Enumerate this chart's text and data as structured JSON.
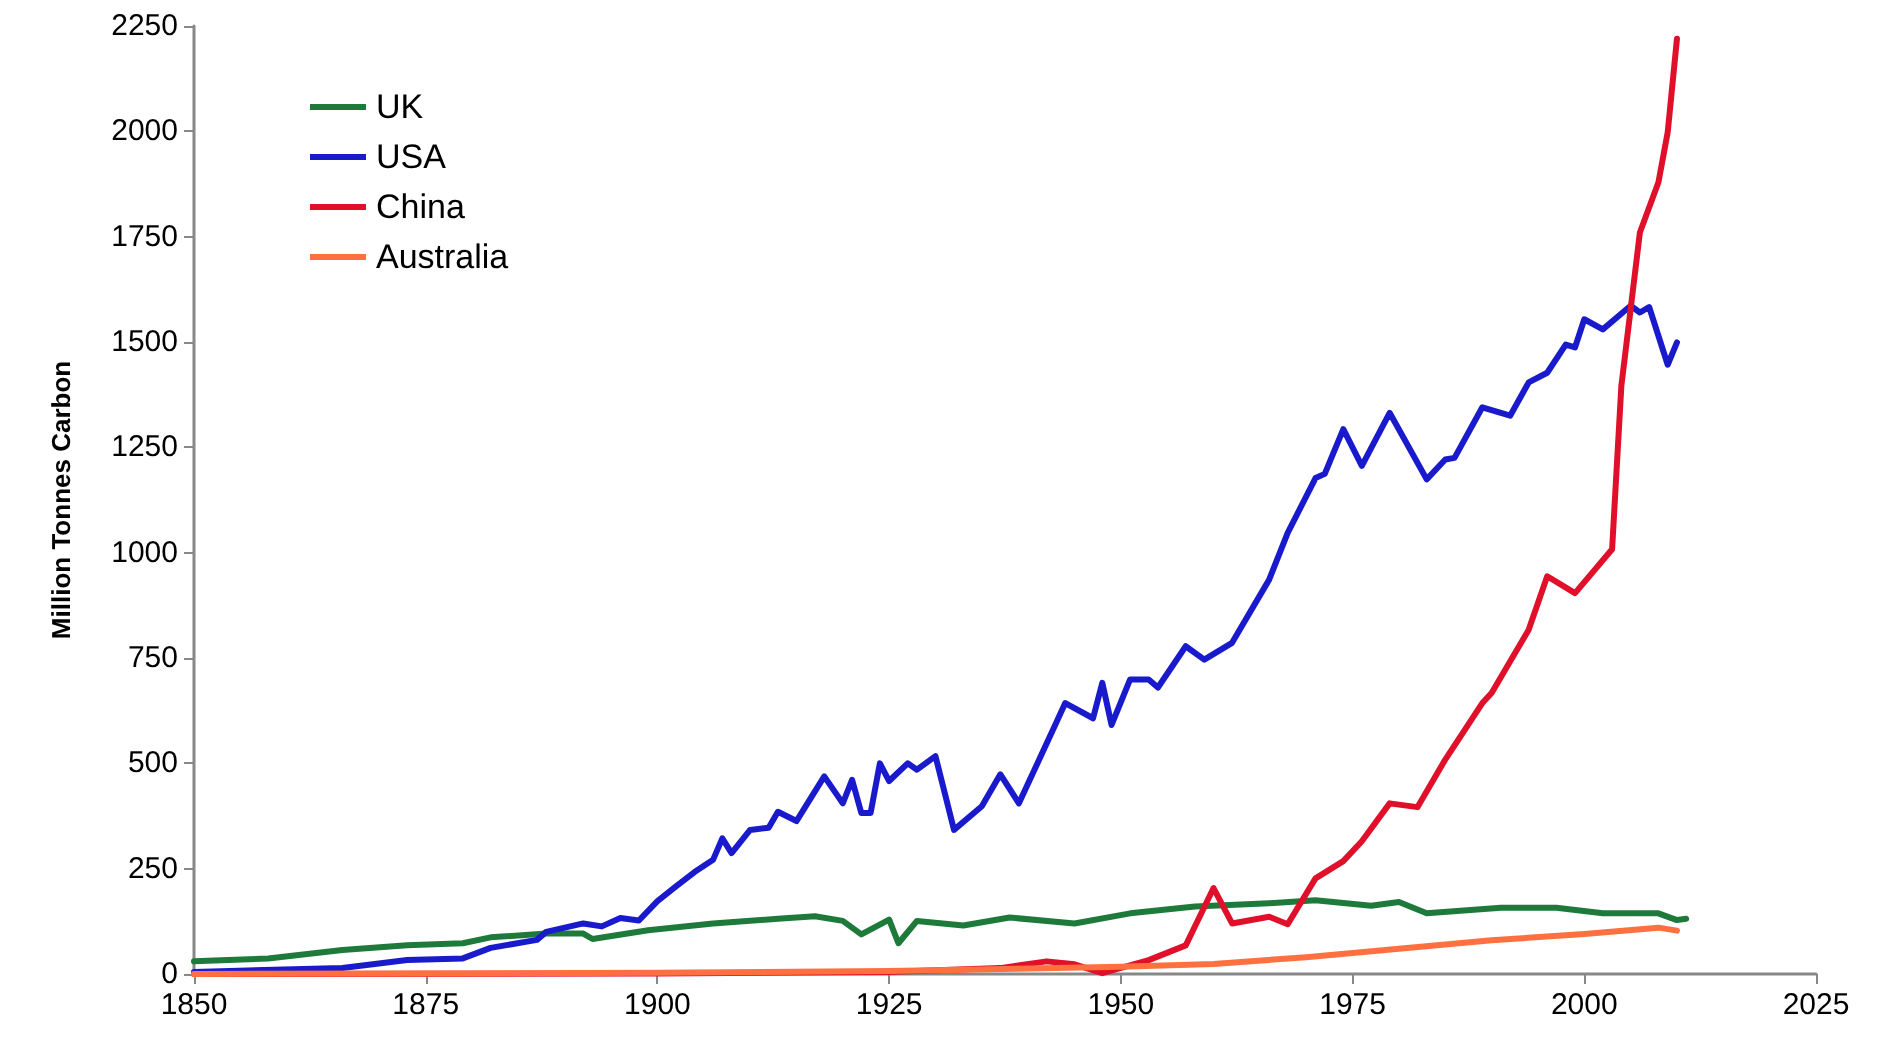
{
  "chart_data": {
    "type": "line",
    "ylabel": "Million Tonnes Carbon",
    "xlim": [
      1850,
      2025
    ],
    "xticks": [
      1850,
      1875,
      1900,
      1925,
      1950,
      1975,
      2000,
      2025
    ],
    "ylim": [
      0,
      2250
    ],
    "yticks": [
      0,
      250,
      500,
      750,
      1000,
      1250,
      1500,
      1750,
      2000,
      2250
    ],
    "grid": false,
    "legend": "top left",
    "marker": "none",
    "line_style": "solid",
    "series": [
      {
        "name": "UK",
        "color": "#1e7a3a",
        "x": [
          1850,
          1858,
          1866,
          1873,
          1879,
          1882,
          1888,
          1892,
          1893,
          1899,
          1906,
          1913,
          1917,
          1920,
          1922,
          1925,
          1926,
          1928,
          1933,
          1938,
          1945,
          1951,
          1958,
          1966,
          1971,
          1977,
          1980,
          1983,
          1991,
          1997,
          2002,
          2008,
          2010,
          2011
        ],
        "values": [
          30,
          37,
          57,
          68,
          73,
          87,
          96,
          96,
          83,
          104,
          120,
          131,
          137,
          126,
          94,
          129,
          73,
          126,
          115,
          134,
          120,
          144,
          160,
          168,
          175,
          162,
          171,
          144,
          157,
          157,
          144,
          144,
          128,
          131
        ]
      },
      {
        "name": "USA",
        "color": "#1a1acd",
        "x": [
          1850,
          1866,
          1873,
          1879,
          1882,
          1887,
          1888,
          1892,
          1894,
          1896,
          1898,
          1900,
          1902,
          1904,
          1906,
          1907,
          1908,
          1910,
          1912,
          1913,
          1915,
          1918,
          1920,
          1921,
          1922,
          1923,
          1924,
          1925,
          1927,
          1928,
          1930,
          1932,
          1935,
          1937,
          1939,
          1943,
          1944,
          1947,
          1948,
          1949,
          1951,
          1953,
          1954,
          1957,
          1959,
          1962,
          1966,
          1968,
          1971,
          1972,
          1974,
          1976,
          1979,
          1983,
          1985,
          1986,
          1989,
          1992,
          1994,
          1996,
          1998,
          1999,
          2000,
          2002,
          2005,
          2006,
          2007,
          2009,
          2010
        ],
        "values": [
          5,
          14,
          33,
          37,
          62,
          81,
          100,
          120,
          113,
          133,
          127,
          173,
          208,
          242,
          271,
          322,
          287,
          342,
          347,
          385,
          363,
          469,
          405,
          461,
          382,
          382,
          500,
          458,
          500,
          485,
          517,
          342,
          398,
          474,
          405,
          595,
          643,
          607,
          691,
          591,
          699,
          699,
          680,
          778,
          746,
          786,
          936,
          1047,
          1177,
          1187,
          1293,
          1206,
          1332,
          1174,
          1221,
          1225,
          1345,
          1325,
          1404,
          1427,
          1494,
          1487,
          1554,
          1530,
          1586,
          1570,
          1583,
          1446,
          1499
        ]
      },
      {
        "name": "China",
        "color": "#e0102a",
        "x": [
          1850,
          1900,
          1925,
          1937,
          1942,
          1945,
          1948,
          1953,
          1957,
          1960,
          1962,
          1966,
          1968,
          1971,
          1974,
          1976,
          1979,
          1982,
          1985,
          1989,
          1990,
          1994,
          1996,
          1999,
          2003,
          2004,
          2006,
          2008,
          2009,
          2010
        ],
        "values": [
          0,
          1,
          5,
          14,
          30,
          23,
          2,
          33,
          68,
          204,
          120,
          136,
          118,
          227,
          268,
          315,
          405,
          396,
          509,
          643,
          667,
          817,
          944,
          904,
          1008,
          1396,
          1760,
          1879,
          1998,
          2220
        ]
      },
      {
        "name": "Australia",
        "color": "#ff7040",
        "x": [
          1850,
          1900,
          1925,
          1950,
          1960,
          1970,
          1980,
          1990,
          2000,
          2008,
          2010
        ],
        "values": [
          0,
          3,
          7,
          17,
          24,
          40,
          60,
          80,
          95,
          110,
          103
        ]
      }
    ]
  }
}
